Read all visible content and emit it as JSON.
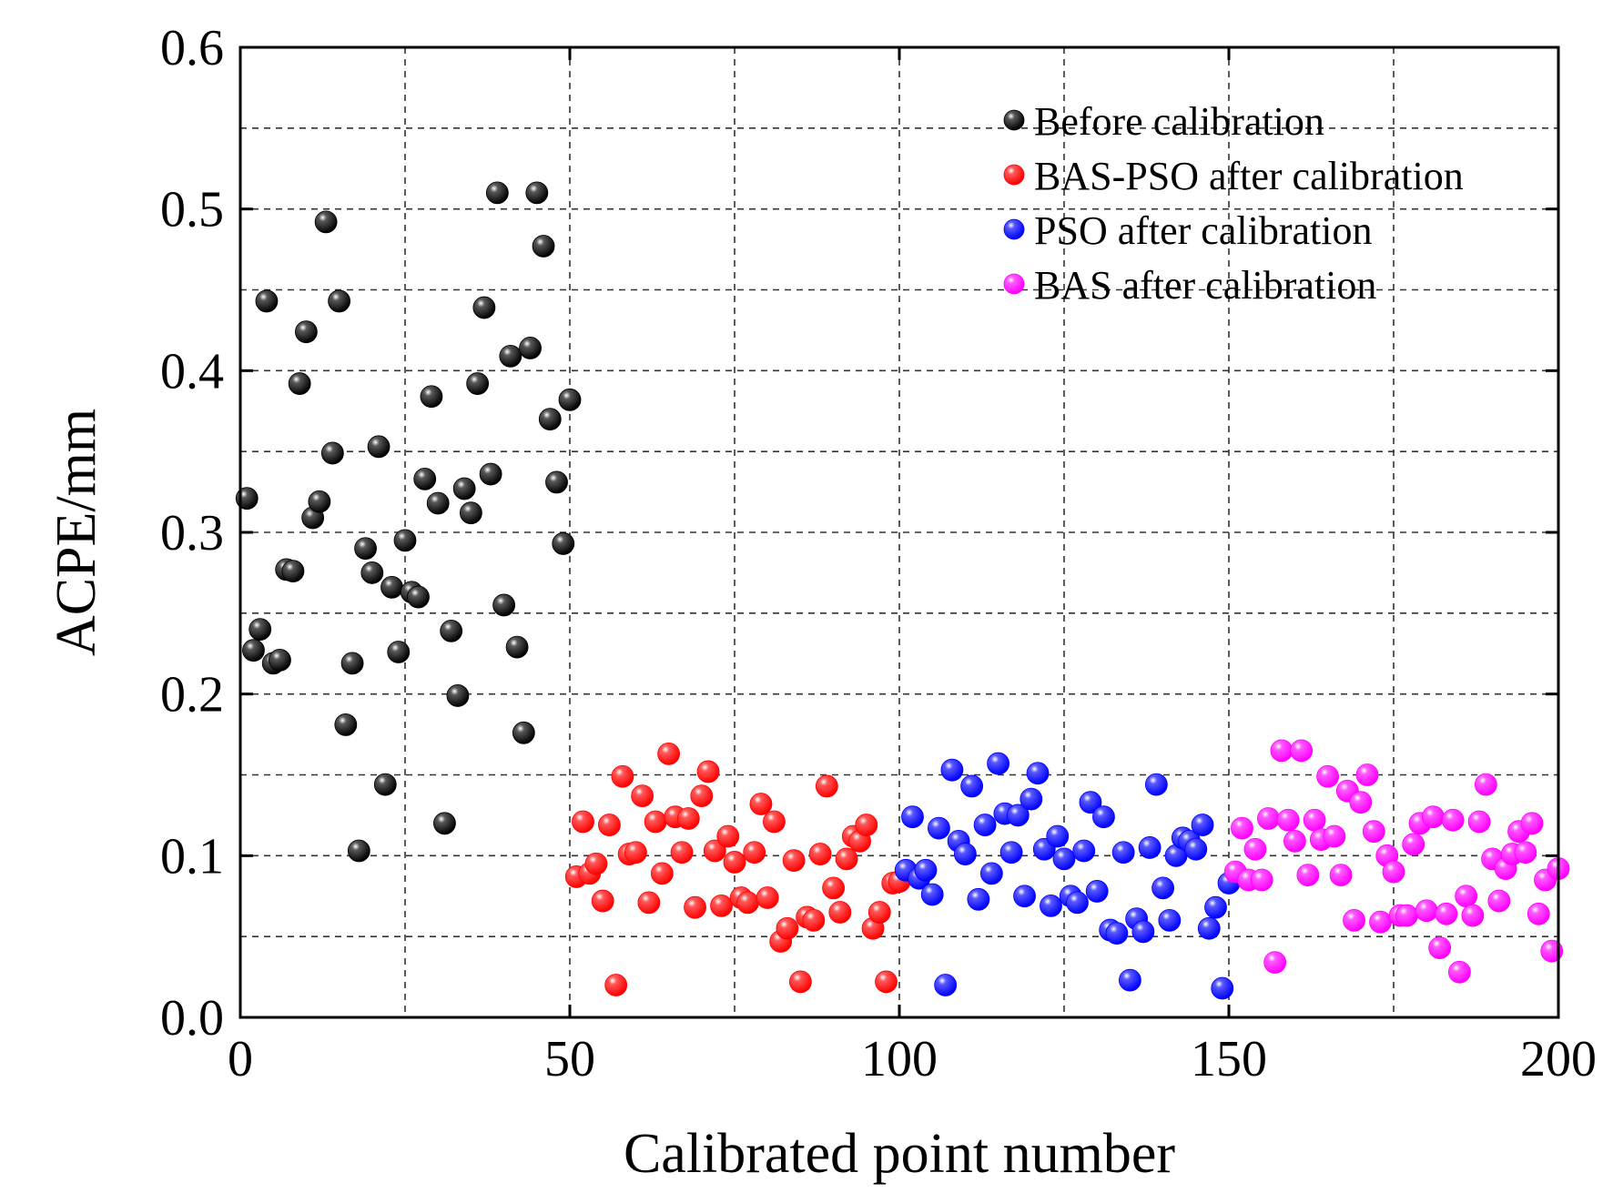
{
  "chart_data": {
    "type": "scatter",
    "title": "",
    "xlabel": "Calibrated point number",
    "ylabel": "ACPE/mm",
    "xlim": [
      0,
      200
    ],
    "ylim": [
      0.0,
      0.6
    ],
    "x_ticks": [
      "0",
      "50",
      "100",
      "150",
      "200"
    ],
    "y_ticks": [
      "0.0",
      "0.1",
      "0.2",
      "0.3",
      "0.4",
      "0.5",
      "0.6"
    ],
    "grid": true,
    "legend_position": "top-right",
    "series": [
      {
        "name": "Before calibration",
        "color": "#000000",
        "x": [
          1,
          2,
          3,
          4,
          5,
          6,
          7,
          8,
          9,
          10,
          11,
          12,
          13,
          14,
          15,
          16,
          17,
          18,
          19,
          20,
          21,
          22,
          23,
          24,
          25,
          26,
          27,
          28,
          29,
          30,
          31,
          32,
          33,
          34,
          35,
          36,
          37,
          38,
          39,
          40,
          41,
          42,
          43,
          44,
          45,
          46,
          47,
          48,
          49,
          50
        ],
        "y": [
          0.321,
          0.227,
          0.24,
          0.443,
          0.219,
          0.221,
          0.277,
          0.276,
          0.392,
          0.424,
          0.309,
          0.319,
          0.492,
          0.349,
          0.443,
          0.181,
          0.219,
          0.103,
          0.29,
          0.275,
          0.353,
          0.144,
          0.266,
          0.226,
          0.295,
          0.263,
          0.26,
          0.333,
          0.384,
          0.318,
          0.12,
          0.239,
          0.199,
          0.327,
          0.312,
          0.392,
          0.439,
          0.336,
          0.51,
          0.255,
          0.409,
          0.229,
          0.176,
          0.414,
          0.51,
          0.477,
          0.37,
          0.331,
          0.293,
          0.382
        ]
      },
      {
        "name": "BAS-PSO after calibration",
        "color": "#ff0000",
        "x": [
          51,
          52,
          53,
          54,
          55,
          56,
          57,
          58,
          59,
          60,
          61,
          62,
          63,
          64,
          65,
          66,
          67,
          68,
          69,
          70,
          71,
          72,
          73,
          74,
          75,
          76,
          77,
          78,
          79,
          80,
          81,
          82,
          83,
          84,
          85,
          86,
          87,
          88,
          89,
          90,
          91,
          92,
          93,
          94,
          95,
          96,
          97,
          98,
          99,
          100
        ],
        "y": [
          0.087,
          0.121,
          0.089,
          0.095,
          0.072,
          0.119,
          0.02,
          0.149,
          0.101,
          0.102,
          0.137,
          0.071,
          0.121,
          0.089,
          0.163,
          0.124,
          0.102,
          0.123,
          0.068,
          0.137,
          0.152,
          0.103,
          0.069,
          0.112,
          0.096,
          0.074,
          0.071,
          0.102,
          0.132,
          0.074,
          0.121,
          0.047,
          0.055,
          0.097,
          0.022,
          0.062,
          0.06,
          0.101,
          0.143,
          0.08,
          0.065,
          0.098,
          0.112,
          0.109,
          0.119,
          0.055,
          0.065,
          0.022,
          0.083,
          0.084
        ]
      },
      {
        "name": "PSO after calibration",
        "color": "#0000ff",
        "x": [
          101,
          102,
          103,
          104,
          105,
          106,
          107,
          108,
          109,
          110,
          111,
          112,
          113,
          114,
          115,
          116,
          117,
          118,
          119,
          120,
          121,
          122,
          123,
          124,
          125,
          126,
          127,
          128,
          129,
          130,
          131,
          132,
          133,
          134,
          135,
          136,
          137,
          138,
          139,
          140,
          141,
          142,
          143,
          144,
          145,
          146,
          147,
          148,
          149,
          150
        ],
        "y": [
          0.091,
          0.124,
          0.086,
          0.091,
          0.076,
          0.117,
          0.02,
          0.153,
          0.109,
          0.101,
          0.143,
          0.073,
          0.119,
          0.089,
          0.157,
          0.126,
          0.102,
          0.125,
          0.075,
          0.135,
          0.151,
          0.104,
          0.069,
          0.112,
          0.098,
          0.075,
          0.071,
          0.103,
          0.133,
          0.078,
          0.124,
          0.054,
          0.052,
          0.102,
          0.023,
          0.061,
          0.053,
          0.105,
          0.144,
          0.08,
          0.06,
          0.1,
          0.111,
          0.109,
          0.104,
          0.119,
          0.055,
          0.068,
          0.018,
          0.083
        ]
      },
      {
        "name": "BAS after calibration",
        "color": "#ff00ff",
        "x": [
          151,
          152,
          153,
          154,
          155,
          156,
          157,
          158,
          159,
          160,
          161,
          162,
          163,
          164,
          165,
          166,
          167,
          168,
          169,
          170,
          171,
          172,
          173,
          174,
          175,
          176,
          177,
          178,
          179,
          180,
          181,
          182,
          183,
          184,
          185,
          186,
          187,
          188,
          189,
          190,
          191,
          192,
          193,
          194,
          195,
          196,
          197,
          198,
          199,
          200
        ],
        "y": [
          0.09,
          0.117,
          0.085,
          0.104,
          0.085,
          0.123,
          0.034,
          0.165,
          0.122,
          0.109,
          0.165,
          0.088,
          0.122,
          0.11,
          0.149,
          0.112,
          0.088,
          0.14,
          0.06,
          0.133,
          0.15,
          0.115,
          0.059,
          0.1,
          0.09,
          0.063,
          0.063,
          0.107,
          0.12,
          0.066,
          0.124,
          0.043,
          0.064,
          0.122,
          0.028,
          0.075,
          0.063,
          0.121,
          0.144,
          0.098,
          0.072,
          0.092,
          0.101,
          0.115,
          0.102,
          0.12,
          0.064,
          0.085,
          0.041,
          0.092
        ]
      }
    ]
  }
}
